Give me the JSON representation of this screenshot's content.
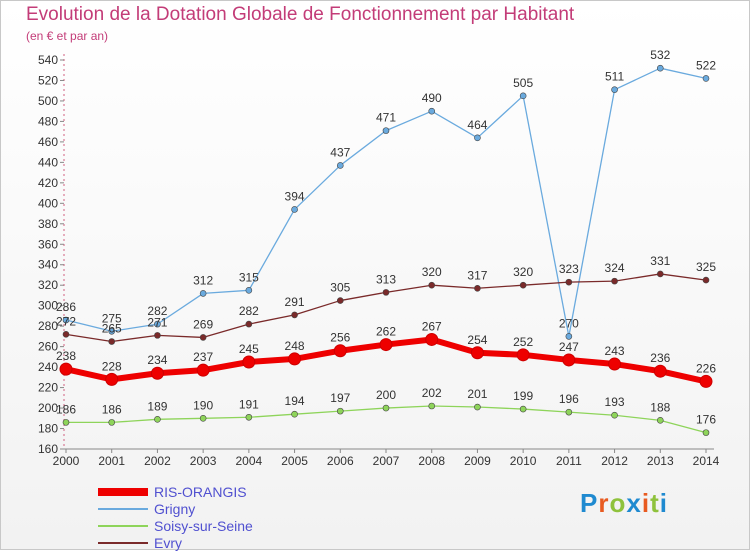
{
  "title": "Evolution de la Dotation Globale de Fonctionnement par Habitant",
  "subtitle": "(en € et par an)",
  "logo": {
    "text": "Proxiti",
    "colors": [
      "#1f8ad0",
      "#e85a20",
      "#8fc23c",
      "#1f8ad0",
      "#e85a20",
      "#8fc23c",
      "#1f8ad0"
    ]
  },
  "chart_data": {
    "type": "line",
    "x": [
      "2000",
      "2001",
      "2002",
      "2003",
      "2004",
      "2005",
      "2006",
      "2007",
      "2008",
      "2009",
      "2010",
      "2011",
      "2012",
      "2013",
      "2014"
    ],
    "ylim": [
      160,
      540
    ],
    "yticks": [
      160,
      180,
      200,
      220,
      240,
      260,
      280,
      300,
      320,
      340,
      360,
      380,
      400,
      420,
      440,
      460,
      480,
      500,
      520,
      540
    ],
    "grid": false,
    "legend_position": "bottom-left",
    "series": [
      {
        "name": "RIS-ORANGIS",
        "color": "#ee0000",
        "emphasis": true,
        "values": [
          238,
          228,
          234,
          237,
          245,
          248,
          256,
          262,
          267,
          254,
          252,
          247,
          243,
          236,
          226
        ]
      },
      {
        "name": "Grigny",
        "color": "#6aaade",
        "emphasis": false,
        "values": [
          286,
          275,
          282,
          312,
          315,
          394,
          437,
          471,
          490,
          464,
          505,
          270,
          511,
          532,
          522
        ]
      },
      {
        "name": "Soisy-sur-Seine",
        "color": "#8ed45a",
        "emphasis": false,
        "values": [
          186,
          186,
          189,
          190,
          191,
          194,
          197,
          200,
          202,
          201,
          199,
          196,
          193,
          188,
          176
        ]
      },
      {
        "name": "Evry",
        "color": "#7a2a2a",
        "emphasis": false,
        "values": [
          272,
          265,
          271,
          269,
          282,
          291,
          305,
          313,
          320,
          317,
          320,
          323,
          324,
          331,
          325
        ]
      }
    ]
  }
}
